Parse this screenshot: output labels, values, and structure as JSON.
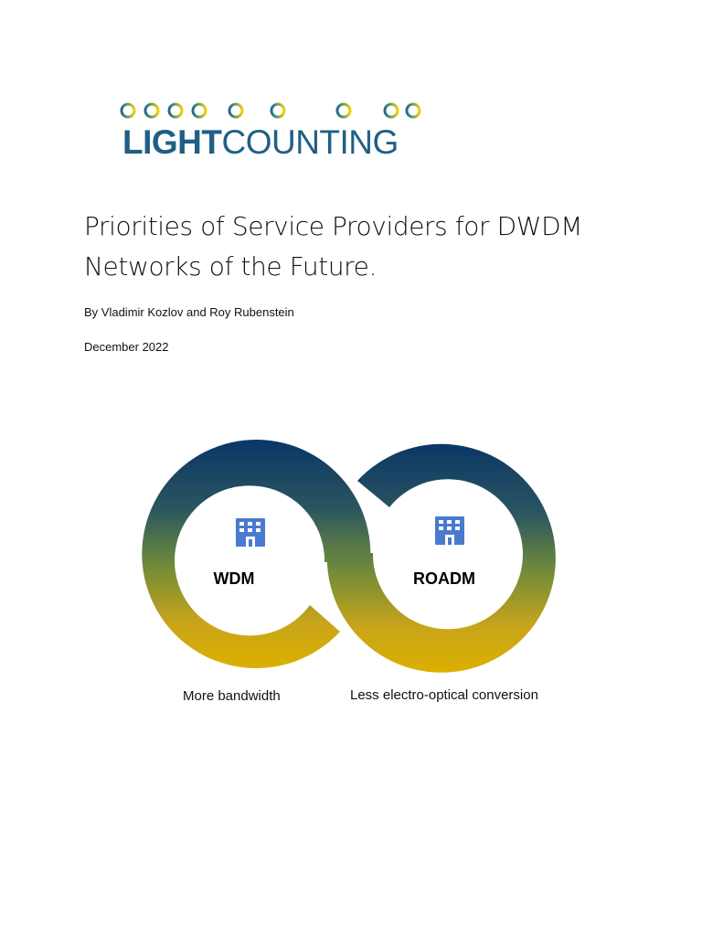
{
  "logo": {
    "brand_bold": "LIGHT",
    "brand_regular": "COUNTING",
    "brand_color": "#1f5f86",
    "gradient_start": "#1f5f86",
    "gradient_end": "#f0d000"
  },
  "document": {
    "title": "Priorities of Service Providers for DWDM Networks of the Future.",
    "byline": "By Vladimir Kozlov and Roy Rubenstein",
    "date": "December 2022"
  },
  "diagram": {
    "left_ring": {
      "label": "WDM",
      "caption": "More bandwidth",
      "icon": "building-icon"
    },
    "right_ring": {
      "label": "ROADM",
      "caption": "Less electro-optical conversion",
      "icon": "building-icon"
    },
    "gradient_top": "#0b3666",
    "gradient_bottom": "#dcb000",
    "icon_color": "#4a7ad0"
  }
}
